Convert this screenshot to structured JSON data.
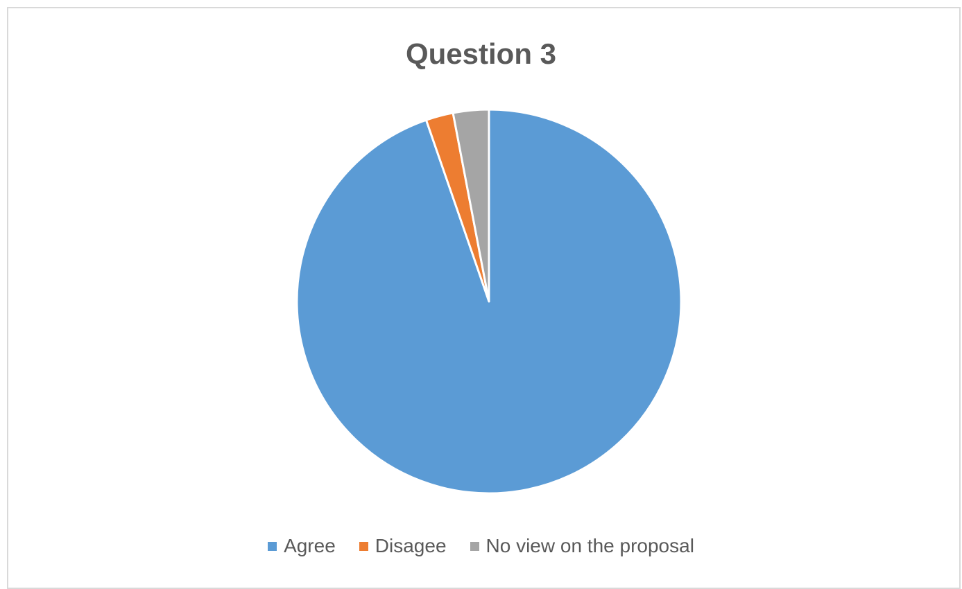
{
  "chart_data": {
    "type": "pie",
    "title": "Question 3",
    "categories": [
      "Agree",
      "Disagee",
      "No view on the proposal"
    ],
    "values": [
      94.7,
      2.3,
      3.0
    ],
    "colors": [
      "#5b9bd5",
      "#ed7d31",
      "#a5a5a5"
    ],
    "legend_position": "bottom",
    "start_angle": "12 o'clock",
    "direction": "clockwise"
  }
}
